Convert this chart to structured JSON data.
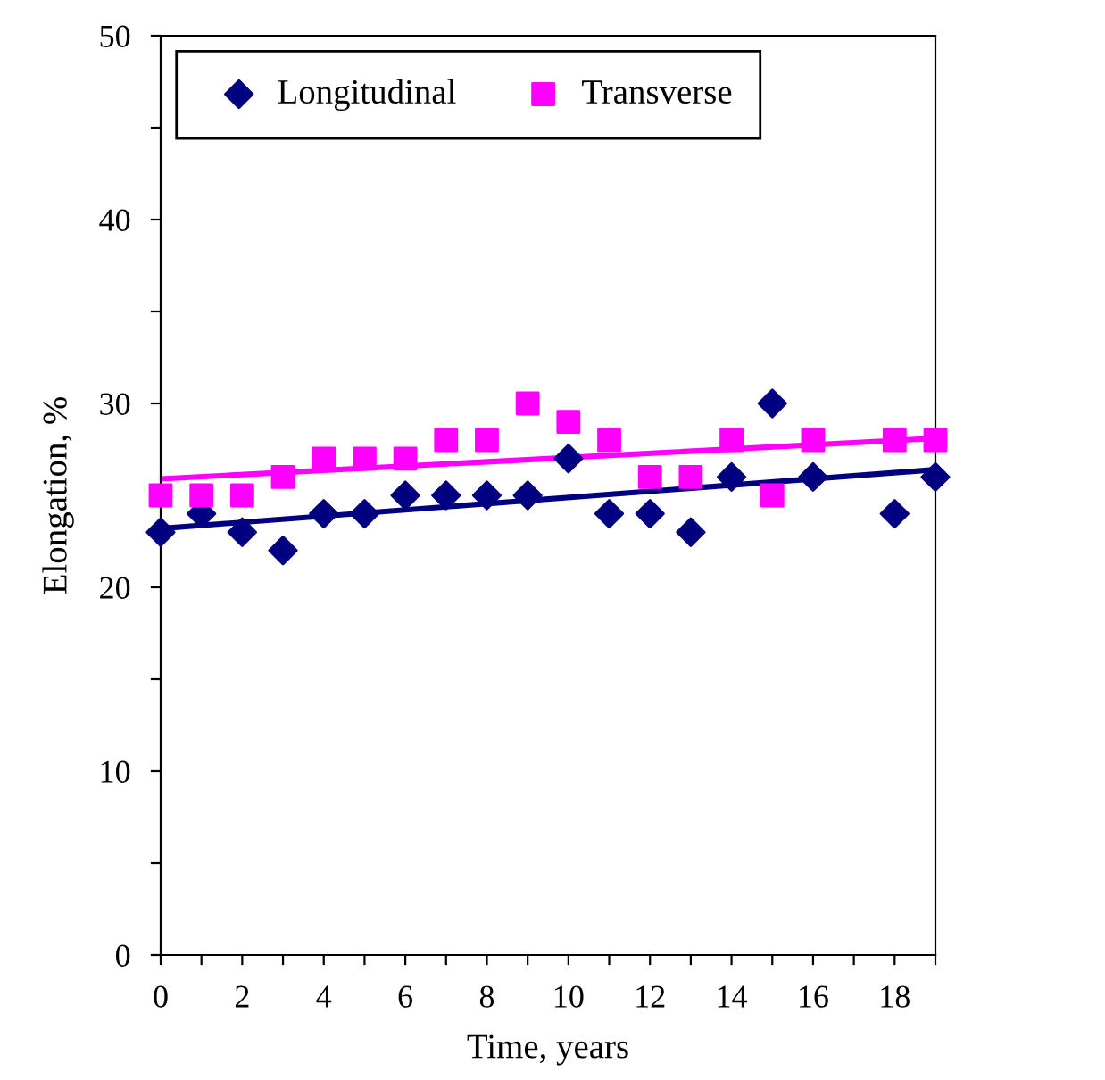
{
  "chart_data": {
    "type": "scatter",
    "xlabel": "Time, years",
    "ylabel": "Elongation, %",
    "xlim": [
      0,
      19
    ],
    "ylim": [
      0,
      50
    ],
    "xticks": [
      0,
      {
        "value": 1,
        "label": null
      },
      2,
      {
        "value": 3,
        "label": null
      },
      4,
      {
        "value": 5,
        "label": null
      },
      6,
      {
        "value": 7,
        "label": null
      },
      8,
      {
        "value": 9,
        "label": null
      },
      10,
      {
        "value": 11,
        "label": null
      },
      12,
      {
        "value": 13,
        "label": null
      },
      14,
      {
        "value": 15,
        "label": null
      },
      16,
      {
        "value": 17,
        "label": null
      },
      18,
      {
        "value": 19,
        "label": null
      }
    ],
    "yticks": [
      0,
      {
        "value": 5,
        "label": null
      },
      10,
      {
        "value": 15,
        "label": null
      },
      20,
      {
        "value": 25,
        "label": null
      },
      30,
      {
        "value": 35,
        "label": null
      },
      40,
      {
        "value": 45,
        "label": null
      },
      50
    ],
    "grid": false,
    "legend": "top left",
    "series": [
      {
        "name": "Longitudinal",
        "color": "#000080",
        "marker": "diamond",
        "x": [
          0,
          1,
          2,
          3,
          4,
          5,
          6,
          7,
          8,
          9,
          10,
          11,
          12,
          13,
          14,
          15,
          16,
          18,
          19
        ],
        "values": [
          23,
          24,
          23,
          22,
          24,
          24,
          25,
          25,
          25,
          25,
          27,
          24,
          24,
          23,
          26,
          30,
          26,
          24,
          26
        ]
      },
      {
        "name": "Transverse",
        "color": "#ff00ff",
        "marker": "square",
        "x": [
          0,
          1,
          2,
          3,
          4,
          5,
          6,
          7,
          8,
          9,
          10,
          11,
          12,
          13,
          14,
          15,
          16,
          18,
          19
        ],
        "values": [
          25,
          25,
          25,
          26,
          27,
          27,
          27,
          28,
          28,
          30,
          29,
          28,
          26,
          26,
          28,
          25,
          28,
          28,
          28
        ]
      },
      {
        "type": "line",
        "color": "#000080",
        "marker": "none",
        "line_style": "solid",
        "x": [
          0,
          19
        ],
        "values": [
          23.2,
          26.4
        ]
      },
      {
        "type": "line",
        "color": "#ff00ff",
        "marker": "none",
        "line_style": "solid",
        "x": [
          0,
          19
        ],
        "values": [
          25.9,
          28.1
        ]
      }
    ]
  }
}
